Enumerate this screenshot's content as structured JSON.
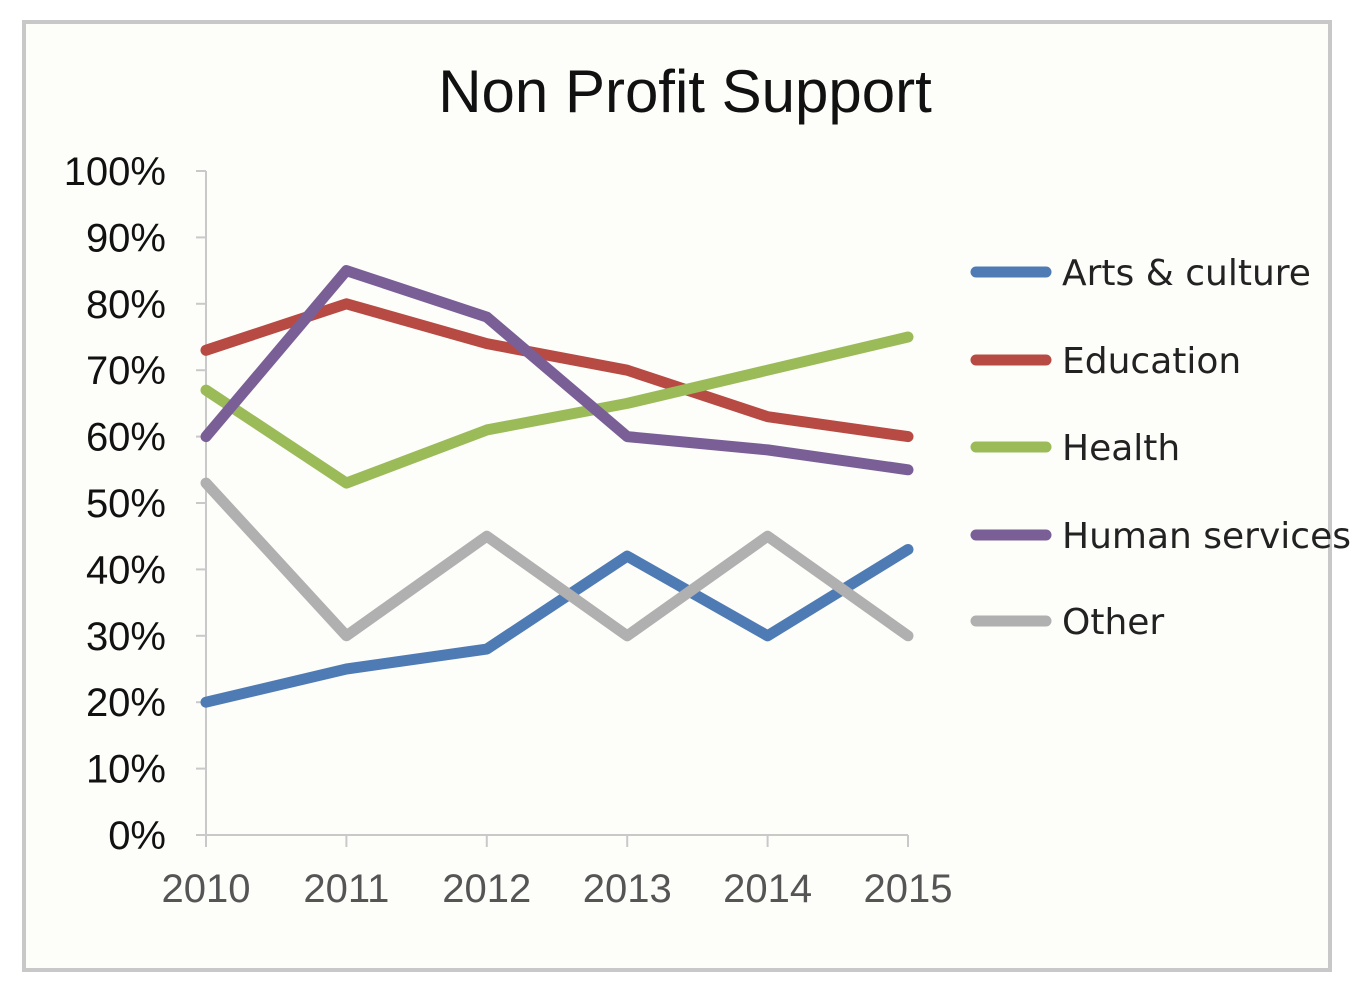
{
  "chart_data": {
    "type": "line",
    "title": "Non Profit Support",
    "xlabel": "",
    "ylabel": "",
    "x": [
      "2010",
      "2011",
      "2012",
      "2013",
      "2014",
      "2015"
    ],
    "ylim": [
      0,
      100
    ],
    "y_ticks": [
      "0%",
      "10%",
      "20%",
      "30%",
      "40%",
      "50%",
      "60%",
      "70%",
      "80%",
      "90%",
      "100%"
    ],
    "grid": false,
    "legend_position": "right",
    "series": [
      {
        "name": "Arts & culture",
        "color": "#4f7bb5",
        "values": [
          20,
          25,
          28,
          42,
          30,
          43
        ]
      },
      {
        "name": "Education",
        "color": "#b84a44",
        "values": [
          73,
          80,
          74,
          70,
          63,
          60
        ]
      },
      {
        "name": "Health",
        "color": "#9bbb59",
        "values": [
          67,
          53,
          61,
          65,
          70,
          75
        ]
      },
      {
        "name": "Human services",
        "color": "#7a5f97",
        "values": [
          60,
          85,
          78,
          60,
          58,
          55
        ]
      },
      {
        "name": "Other",
        "color": "#b0b0b0",
        "values": [
          53,
          30,
          45,
          30,
          45,
          30
        ]
      }
    ]
  }
}
